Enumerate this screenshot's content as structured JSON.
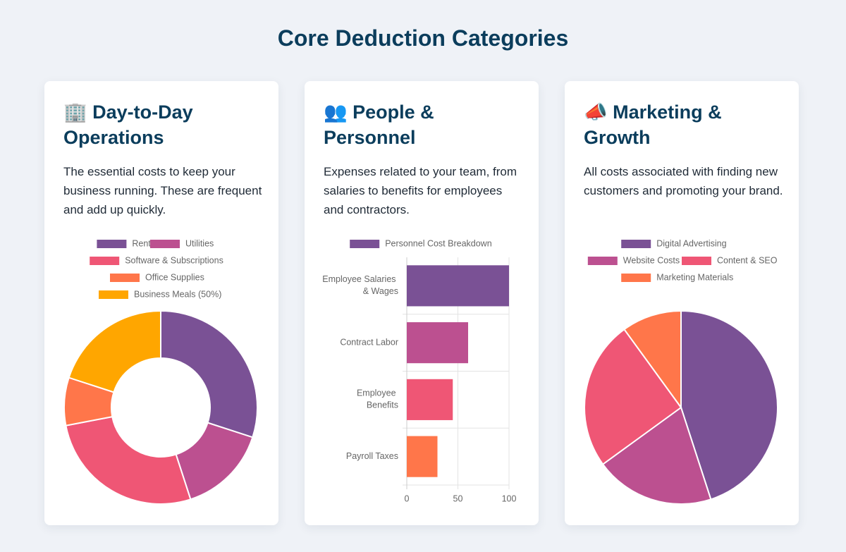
{
  "page": {
    "title": "Core Deduction Categories",
    "cards": [
      {
        "title": "🏢 Day-to-Day Operations",
        "description": "The essential costs to keep your business running. These are frequent and add up quickly."
      },
      {
        "title": "👥 People & Personnel",
        "description": "Expenses related to your team, from salaries to benefits for employees and contractors."
      },
      {
        "title": "📣 Marketing & Growth",
        "description": "All costs associated with finding new customers and promoting your brand."
      }
    ]
  },
  "chart_data": [
    {
      "type": "doughnut",
      "categories": [
        "Rent",
        "Utilities",
        "Software & Subscriptions",
        "Office Supplies",
        "Business Meals (50%)"
      ],
      "values": [
        30,
        15,
        27,
        8,
        20
      ],
      "colors": [
        "#7a5195",
        "#bc5090",
        "#ef5675",
        "#ff764a",
        "#ffa600"
      ]
    },
    {
      "type": "hbar",
      "categories": [
        "Employee Salaries & Wages",
        "Contract Labor",
        "Employee Benefits",
        "Payroll Taxes"
      ],
      "series": [
        {
          "name": "Personnel Cost Breakdown",
          "color": "#7a5195",
          "values": [
            100,
            60,
            45,
            30
          ]
        }
      ],
      "colors": [
        "#7a5195",
        "#bc5090",
        "#ef5675",
        "#ff764a"
      ],
      "xlim": [
        0,
        100
      ],
      "xticks": [
        0,
        50,
        100
      ],
      "grid": true
    },
    {
      "type": "pie",
      "categories": [
        "Digital Advertising",
        "Website Costs",
        "Content & SEO",
        "Marketing Materials"
      ],
      "values": [
        45,
        20,
        25,
        10
      ],
      "colors": [
        "#7a5195",
        "#bc5090",
        "#ef5675",
        "#ff764a"
      ]
    }
  ]
}
